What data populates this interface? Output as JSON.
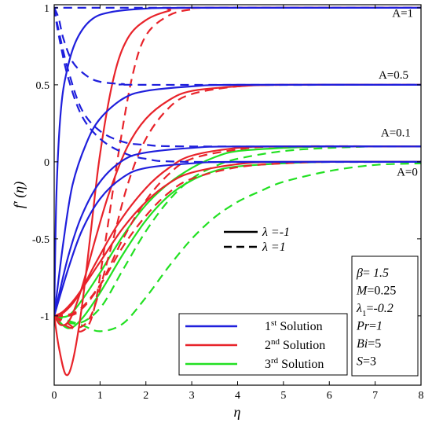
{
  "chart_data": {
    "type": "line",
    "xlabel": "η",
    "ylabel": "f′ (η)",
    "xlim": [
      0,
      8
    ],
    "ylim": [
      -1.45,
      1.02
    ],
    "xticks": [
      "0",
      "1",
      "2",
      "3",
      "4",
      "5",
      "6",
      "7",
      "8"
    ],
    "yticks": [
      {
        "value": 1,
        "label": "1"
      },
      {
        "value": 0.5,
        "label": "0.5"
      },
      {
        "value": 0,
        "label": "0"
      },
      {
        "value": -0.5,
        "label": "-0.5"
      },
      {
        "value": -1,
        "label": "-1"
      }
    ],
    "annotations": [
      {
        "text": "A=1",
        "x": 7.6,
        "y": 0.94
      },
      {
        "text": "A=0.5",
        "x": 7.4,
        "y": 0.54
      },
      {
        "text": "A=0.1",
        "x": 7.45,
        "y": 0.165
      },
      {
        "text": "A=0",
        "x": 7.7,
        "y": -0.09
      }
    ],
    "style_legend": {
      "solid_label": "λ =-1",
      "dashed_label": "λ =1"
    },
    "solution_legend": [
      {
        "label_main": "1",
        "label_sup": "st",
        "label_rest": " Solution",
        "color": "#1f1fdc"
      },
      {
        "label_main": "2",
        "label_sup": "nd",
        "label_rest": " Solution",
        "color": "#e8232a"
      },
      {
        "label_main": "3",
        "label_sup": "rd",
        "label_rest": " Solution",
        "color": "#22e022"
      }
    ],
    "parameters": [
      {
        "sym": "β",
        "sub": "",
        "eq": "= ",
        "val": "1.5",
        "italic_val": true
      },
      {
        "sym": "M",
        "sub": "",
        "eq": "=",
        "val": "0.25",
        "italic_val": false
      },
      {
        "sym": "λ",
        "sub": "1",
        "eq": "=",
        "val": "-0.2",
        "italic_val": true
      },
      {
        "sym": "Pr",
        "sub": "",
        "eq": "=",
        "val": "1",
        "italic_val": true
      },
      {
        "sym": "Bi",
        "sub": "",
        "eq": "=",
        "val": "5",
        "italic_val": false
      },
      {
        "sym": "S",
        "sub": "",
        "eq": "=",
        "val": "3",
        "italic_val": false
      }
    ],
    "series": [
      {
        "solution": 1,
        "style": "solid",
        "A": 1,
        "points": [
          [
            0,
            -1
          ],
          [
            0.05,
            -0.2
          ],
          [
            0.15,
            0.35
          ],
          [
            0.3,
            0.62
          ],
          [
            0.5,
            0.8
          ],
          [
            0.8,
            0.92
          ],
          [
            1.2,
            0.97
          ],
          [
            2,
            0.995
          ],
          [
            3,
            1
          ],
          [
            8,
            1
          ]
        ]
      },
      {
        "solution": 1,
        "style": "solid",
        "A": 0.5,
        "points": [
          [
            0,
            -1
          ],
          [
            0.2,
            -0.52
          ],
          [
            0.4,
            -0.15
          ],
          [
            0.7,
            0.12
          ],
          [
            1,
            0.28
          ],
          [
            1.5,
            0.41
          ],
          [
            2,
            0.46
          ],
          [
            3,
            0.49
          ],
          [
            4,
            0.5
          ],
          [
            8,
            0.5
          ]
        ]
      },
      {
        "solution": 1,
        "style": "solid",
        "A": 0.1,
        "points": [
          [
            0,
            -1
          ],
          [
            0.3,
            -0.62
          ],
          [
            0.6,
            -0.35
          ],
          [
            1,
            -0.13
          ],
          [
            1.5,
            0.01
          ],
          [
            2,
            0.06
          ],
          [
            3,
            0.09
          ],
          [
            4,
            0.1
          ],
          [
            8,
            0.1
          ]
        ]
      },
      {
        "solution": 1,
        "style": "solid",
        "A": 0,
        "points": [
          [
            0,
            -1
          ],
          [
            0.3,
            -0.7
          ],
          [
            0.6,
            -0.45
          ],
          [
            1,
            -0.24
          ],
          [
            1.5,
            -0.1
          ],
          [
            2,
            -0.04
          ],
          [
            3,
            -0.01
          ],
          [
            4,
            0
          ],
          [
            8,
            0
          ]
        ]
      },
      {
        "solution": 1,
        "style": "dashed",
        "A": 1,
        "points": [
          [
            0,
            1
          ],
          [
            0.1,
            1
          ],
          [
            8,
            1
          ]
        ]
      },
      {
        "solution": 1,
        "style": "dashed",
        "A": 0.5,
        "points": [
          [
            0,
            1
          ],
          [
            0.1,
            0.93
          ],
          [
            0.2,
            0.8
          ],
          [
            0.4,
            0.65
          ],
          [
            0.7,
            0.56
          ],
          [
            1,
            0.52
          ],
          [
            1.5,
            0.505
          ],
          [
            2,
            0.5
          ],
          [
            8,
            0.5
          ]
        ]
      },
      {
        "solution": 1,
        "style": "dashed",
        "A": 0.1,
        "points": [
          [
            0,
            1
          ],
          [
            0.1,
            0.85
          ],
          [
            0.3,
            0.6
          ],
          [
            0.6,
            0.34
          ],
          [
            1,
            0.2
          ],
          [
            1.5,
            0.13
          ],
          [
            2,
            0.11
          ],
          [
            3,
            0.1
          ],
          [
            8,
            0.1
          ]
        ]
      },
      {
        "solution": 1,
        "style": "dashed",
        "A": 0,
        "points": [
          [
            0,
            1
          ],
          [
            0.1,
            0.82
          ],
          [
            0.3,
            0.55
          ],
          [
            0.6,
            0.3
          ],
          [
            1,
            0.15
          ],
          [
            1.5,
            0.06
          ],
          [
            2,
            0.02
          ],
          [
            3,
            0
          ],
          [
            8,
            0
          ]
        ]
      },
      {
        "solution": 2,
        "style": "solid",
        "A": 1,
        "points": [
          [
            0,
            -1
          ],
          [
            0.1,
            -1.2
          ],
          [
            0.25,
            -1.38
          ],
          [
            0.4,
            -1.3
          ],
          [
            0.6,
            -0.95
          ],
          [
            0.8,
            -0.45
          ],
          [
            1,
            0.05
          ],
          [
            1.3,
            0.55
          ],
          [
            1.6,
            0.8
          ],
          [
            2,
            0.92
          ],
          [
            2.5,
            0.98
          ],
          [
            3,
            1
          ],
          [
            8,
            1
          ]
        ]
      },
      {
        "solution": 2,
        "style": "solid",
        "A": 0.5,
        "points": [
          [
            0,
            -1
          ],
          [
            0.15,
            -1.06
          ],
          [
            0.35,
            -1.02
          ],
          [
            0.6,
            -0.82
          ],
          [
            0.9,
            -0.5
          ],
          [
            1.2,
            -0.2
          ],
          [
            1.6,
            0.1
          ],
          [
            2,
            0.28
          ],
          [
            2.5,
            0.4
          ],
          [
            3,
            0.46
          ],
          [
            4,
            0.49
          ],
          [
            5,
            0.5
          ],
          [
            8,
            0.5
          ]
        ]
      },
      {
        "solution": 2,
        "style": "solid",
        "A": 0.1,
        "points": [
          [
            0,
            -1
          ],
          [
            0.2,
            -0.98
          ],
          [
            0.5,
            -0.88
          ],
          [
            0.9,
            -0.66
          ],
          [
            1.4,
            -0.4
          ],
          [
            2,
            -0.17
          ],
          [
            2.5,
            -0.04
          ],
          [
            3,
            0.04
          ],
          [
            4,
            0.09
          ],
          [
            5,
            0.1
          ],
          [
            8,
            0.1
          ]
        ]
      },
      {
        "solution": 2,
        "style": "solid",
        "A": 0,
        "points": [
          [
            0,
            -1
          ],
          [
            0.2,
            -0.97
          ],
          [
            0.5,
            -0.87
          ],
          [
            1,
            -0.65
          ],
          [
            1.5,
            -0.43
          ],
          [
            2,
            -0.26
          ],
          [
            2.5,
            -0.14
          ],
          [
            3,
            -0.07
          ],
          [
            4,
            -0.015
          ],
          [
            5,
            0
          ],
          [
            8,
            0
          ]
        ]
      },
      {
        "solution": 2,
        "style": "dashed",
        "A": 1,
        "points": [
          [
            0,
            -1
          ],
          [
            0.3,
            -1.05
          ],
          [
            0.6,
            -1.1
          ],
          [
            0.85,
            -0.98
          ],
          [
            1.1,
            -0.55
          ],
          [
            1.4,
            0.05
          ],
          [
            1.7,
            0.55
          ],
          [
            2,
            0.82
          ],
          [
            2.5,
            0.95
          ],
          [
            3,
            0.99
          ],
          [
            3.5,
            1
          ],
          [
            8,
            1
          ]
        ]
      },
      {
        "solution": 2,
        "style": "dashed",
        "A": 0.5,
        "points": [
          [
            0,
            -1
          ],
          [
            0.4,
            -1.08
          ],
          [
            0.8,
            -1.0
          ],
          [
            1.2,
            -0.6
          ],
          [
            1.6,
            -0.15
          ],
          [
            2,
            0.15
          ],
          [
            2.5,
            0.35
          ],
          [
            3,
            0.44
          ],
          [
            4,
            0.49
          ],
          [
            5,
            0.5
          ],
          [
            8,
            0.5
          ]
        ]
      },
      {
        "solution": 2,
        "style": "dashed",
        "A": 0.1,
        "points": [
          [
            0,
            -1
          ],
          [
            0.5,
            -0.98
          ],
          [
            1,
            -0.8
          ],
          [
            1.5,
            -0.5
          ],
          [
            2,
            -0.25
          ],
          [
            2.5,
            -0.08
          ],
          [
            3,
            0.02
          ],
          [
            4,
            0.08
          ],
          [
            5,
            0.1
          ],
          [
            8,
            0.1
          ]
        ]
      },
      {
        "solution": 2,
        "style": "dashed",
        "A": 0,
        "points": [
          [
            0,
            -1
          ],
          [
            0.5,
            -0.97
          ],
          [
            1,
            -0.8
          ],
          [
            1.5,
            -0.55
          ],
          [
            2,
            -0.35
          ],
          [
            2.5,
            -0.2
          ],
          [
            3,
            -0.11
          ],
          [
            4,
            -0.035
          ],
          [
            5,
            -0.01
          ],
          [
            6,
            0
          ],
          [
            8,
            0
          ]
        ]
      },
      {
        "solution": 3,
        "style": "solid",
        "A": 0.1,
        "points": [
          [
            0,
            -1
          ],
          [
            0.3,
            -1.0
          ],
          [
            0.6,
            -0.9
          ],
          [
            1,
            -0.72
          ],
          [
            1.5,
            -0.48
          ],
          [
            2,
            -0.28
          ],
          [
            2.5,
            -0.14
          ],
          [
            3,
            -0.04
          ],
          [
            3.5,
            0.03
          ],
          [
            4,
            0.07
          ],
          [
            5,
            0.09
          ],
          [
            6,
            0.1
          ],
          [
            8,
            0.1
          ]
        ]
      },
      {
        "solution": 3,
        "style": "solid",
        "A": 0,
        "points": [
          [
            0,
            -1
          ],
          [
            0.3,
            -1.08
          ],
          [
            0.6,
            -1.02
          ],
          [
            1,
            -0.85
          ],
          [
            1.5,
            -0.6
          ],
          [
            2,
            -0.38
          ],
          [
            2.5,
            -0.22
          ],
          [
            3,
            -0.12
          ],
          [
            3.5,
            -0.06
          ],
          [
            4,
            -0.03
          ],
          [
            5,
            -0.01
          ],
          [
            6,
            0
          ],
          [
            8,
            0
          ]
        ]
      },
      {
        "solution": 3,
        "style": "dashed",
        "A": 0.1,
        "points": [
          [
            0,
            -1
          ],
          [
            0.5,
            -1.05
          ],
          [
            1,
            -0.95
          ],
          [
            1.5,
            -0.7
          ],
          [
            2,
            -0.45
          ],
          [
            2.5,
            -0.25
          ],
          [
            3,
            -0.11
          ],
          [
            3.5,
            -0.03
          ],
          [
            4,
            0.02
          ],
          [
            5,
            0.07
          ],
          [
            6,
            0.09
          ],
          [
            7,
            0.1
          ],
          [
            8,
            0.1
          ]
        ]
      },
      {
        "solution": 3,
        "style": "dashed",
        "A": 0,
        "points": [
          [
            0,
            -1
          ],
          [
            0.6,
            -1.06
          ],
          [
            1,
            -1.1
          ],
          [
            1.5,
            -1.05
          ],
          [
            2,
            -0.88
          ],
          [
            2.5,
            -0.68
          ],
          [
            3,
            -0.5
          ],
          [
            3.5,
            -0.36
          ],
          [
            4,
            -0.26
          ],
          [
            4.5,
            -0.19
          ],
          [
            5,
            -0.13
          ],
          [
            6,
            -0.06
          ],
          [
            7,
            -0.02
          ],
          [
            8,
            -0.01
          ]
        ]
      }
    ]
  }
}
